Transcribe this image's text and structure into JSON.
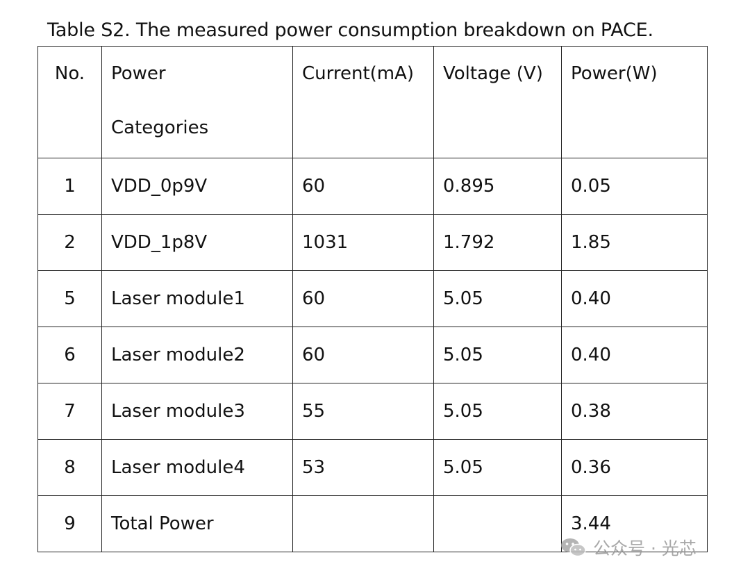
{
  "caption": "Table S2. The measured power consumption breakdown on PACE.",
  "table": {
    "headers": {
      "no": "No.",
      "category_line1": "Power",
      "category_line2": "Categories",
      "current": "Current(mA)",
      "voltage": "Voltage (V)",
      "power": "Power(W)"
    },
    "rows": [
      {
        "no": "1",
        "category": "VDD_0p9V",
        "current": "60",
        "voltage": "0.895",
        "power": "0.05"
      },
      {
        "no": "2",
        "category": "VDD_1p8V",
        "current": "1031",
        "voltage": "1.792",
        "power": "1.85"
      },
      {
        "no": "5",
        "category": "Laser module1",
        "current": "60",
        "voltage": "5.05",
        "power": "0.40"
      },
      {
        "no": "6",
        "category": "Laser module2",
        "current": "60",
        "voltage": "5.05",
        "power": "0.40"
      },
      {
        "no": "7",
        "category": "Laser module3",
        "current": "55",
        "voltage": "5.05",
        "power": "0.38"
      },
      {
        "no": "8",
        "category": "Laser module4",
        "current": "53",
        "voltage": "5.05",
        "power": "0.36"
      },
      {
        "no": "9",
        "category": "Total Power",
        "current": "",
        "voltage": "",
        "power": "3.44"
      }
    ]
  },
  "watermark": {
    "text": "公众号 · 光芯",
    "icon": "wechat-icon"
  }
}
